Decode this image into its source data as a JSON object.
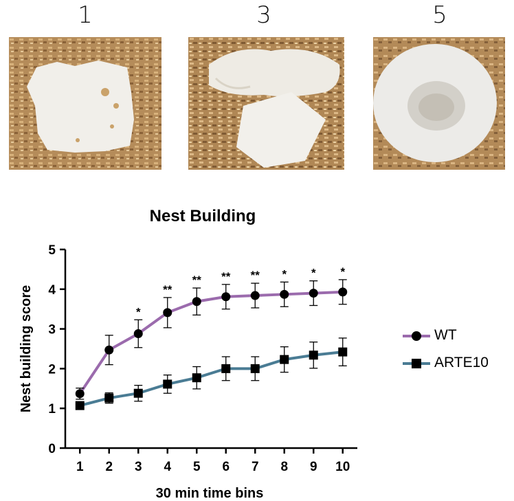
{
  "panels": [
    {
      "label": "1"
    },
    {
      "label": "3"
    },
    {
      "label": "5"
    }
  ],
  "chart_data": {
    "type": "line",
    "title": "Nest Building",
    "xlabel": "30 min time bins",
    "ylabel": "Nest building score",
    "x": [
      1,
      2,
      3,
      4,
      5,
      6,
      7,
      8,
      9,
      10
    ],
    "xlim": [
      0.5,
      10.5
    ],
    "ylim": [
      0,
      5
    ],
    "yticks": [
      0,
      1,
      2,
      3,
      4,
      5
    ],
    "legend_position": "right",
    "series": [
      {
        "name": "WT",
        "color": "#9b6bad",
        "marker": "circle",
        "values": [
          1.37,
          2.47,
          2.88,
          3.41,
          3.69,
          3.81,
          3.84,
          3.87,
          3.9,
          3.93
        ],
        "error": [
          0.14,
          0.37,
          0.35,
          0.38,
          0.34,
          0.31,
          0.31,
          0.31,
          0.31,
          0.31
        ]
      },
      {
        "name": "ARTE10",
        "color": "#4a7c94",
        "marker": "square",
        "values": [
          1.07,
          1.26,
          1.38,
          1.61,
          1.77,
          2.0,
          2.0,
          2.23,
          2.34,
          2.42
        ],
        "error": [
          0.06,
          0.13,
          0.2,
          0.23,
          0.28,
          0.3,
          0.3,
          0.32,
          0.33,
          0.35
        ]
      }
    ],
    "annotations": [
      "",
      "",
      "*",
      "**",
      "**",
      "**",
      "**",
      "*",
      "*",
      "*"
    ]
  }
}
